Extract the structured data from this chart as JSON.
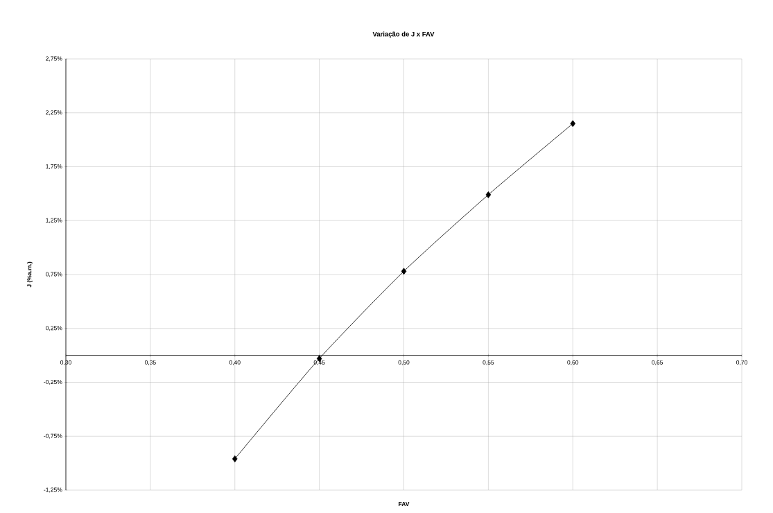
{
  "chart_data": {
    "type": "line",
    "title": "Variação de J x FAV",
    "xlabel": "FAV",
    "ylabel": "J (%a.m.)",
    "x": [
      0.4,
      0.45,
      0.5,
      0.55,
      0.6
    ],
    "series": [
      {
        "color": "#000000",
        "values": [
          -0.96,
          -0.03,
          0.78,
          1.49,
          2.15
        ]
      }
    ],
    "xlim": [
      0.3,
      0.7
    ],
    "xticks": [
      {
        "value": 0.3,
        "label": "0,30"
      },
      {
        "value": 0.35,
        "label": "0,35"
      },
      {
        "value": 0.4,
        "label": "0,40"
      },
      {
        "value": 0.45,
        "label": "0,45"
      },
      {
        "value": 0.5,
        "label": "0,50"
      },
      {
        "value": 0.55,
        "label": "0,55"
      },
      {
        "value": 0.6,
        "label": "0,60"
      },
      {
        "value": 0.65,
        "label": "0,65"
      },
      {
        "value": 0.7,
        "label": "0,70"
      }
    ],
    "ylim": [
      -1.25,
      2.75
    ],
    "yticks": [
      {
        "value": -1.25,
        "label": "-1,25%"
      },
      {
        "value": -0.75,
        "label": "-0,75%"
      },
      {
        "value": -0.25,
        "label": "-0,25%"
      },
      {
        "value": 0.25,
        "label": "0,25%"
      },
      {
        "value": 0.75,
        "label": "0,75%"
      },
      {
        "value": 1.25,
        "label": "1,25%"
      },
      {
        "value": 1.75,
        "label": "1,75%"
      },
      {
        "value": 2.25,
        "label": "2,25%"
      },
      {
        "value": 2.75,
        "label": "2,75%"
      }
    ],
    "grid": true,
    "marker": "diamond",
    "line_style": "solid"
  }
}
